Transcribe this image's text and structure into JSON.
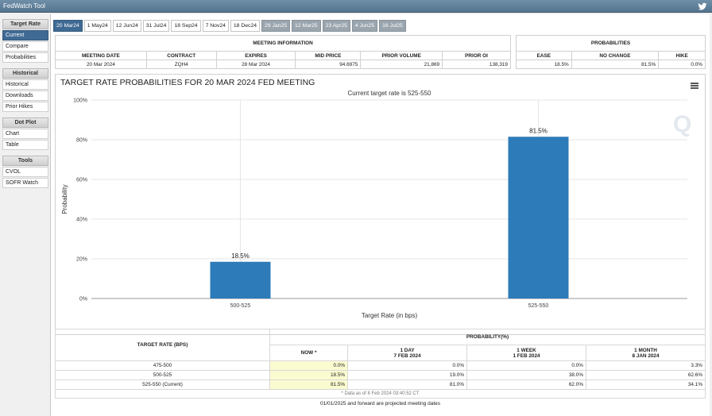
{
  "app": {
    "title": "FedWatch Tool"
  },
  "sidebar": {
    "sections": [
      {
        "heading": "Target Rate",
        "items": [
          "Current",
          "Compare",
          "Probabilities"
        ],
        "active": 0
      },
      {
        "heading": "Historical",
        "items": [
          "Historical",
          "Downloads",
          "Prior Hikes"
        ]
      },
      {
        "heading": "Dot Plot",
        "items": [
          "Chart",
          "Table"
        ]
      },
      {
        "heading": "Tools",
        "items": [
          "CVOL",
          "SOFR Watch"
        ]
      }
    ]
  },
  "tabs": [
    {
      "label": "20 Mar24",
      "state": "active"
    },
    {
      "label": "1 May24",
      "state": "normal"
    },
    {
      "label": "12 Jun24",
      "state": "normal"
    },
    {
      "label": "31 Jul24",
      "state": "normal"
    },
    {
      "label": "18 Sep24",
      "state": "normal"
    },
    {
      "label": "7 Nov24",
      "state": "normal"
    },
    {
      "label": "18 Dec24",
      "state": "normal"
    },
    {
      "label": "29 Jan25",
      "state": "projected"
    },
    {
      "label": "12 Mar25",
      "state": "projected"
    },
    {
      "label": "23 Apr25",
      "state": "projected"
    },
    {
      "label": "4 Jun25",
      "state": "projected"
    },
    {
      "label": "16 Jul25",
      "state": "projected"
    }
  ],
  "meeting_info": {
    "heading": "MEETING INFORMATION",
    "columns": [
      "MEETING DATE",
      "CONTRACT",
      "EXPIRES",
      "MID PRICE",
      "PRIOR VOLUME",
      "PRIOR OI"
    ],
    "values": [
      "20 Mar 2024",
      "ZQH4",
      "28 Mar 2024",
      "94.6975",
      "21,869",
      "138,319"
    ]
  },
  "probabilities": {
    "heading": "PROBABILITIES",
    "columns": [
      "EASE",
      "NO CHANGE",
      "HIKE"
    ],
    "values": [
      "18.5%",
      "81.5%",
      "0.0%"
    ]
  },
  "chart": {
    "title": "TARGET RATE PROBABILITIES FOR 20 MAR 2024 FED MEETING",
    "menu_icon": "hamburger-menu-icon",
    "bar_color": "#2d7bb8"
  },
  "chart_data": {
    "type": "bar",
    "title": "TARGET RATE PROBABILITIES FOR 20 MAR 2024 FED MEETING",
    "subtitle": "Current target rate is 525-550",
    "categories": [
      "500-525",
      "525-550"
    ],
    "values": [
      18.5,
      81.5
    ],
    "value_labels": [
      "18.5%",
      "81.5%"
    ],
    "xlabel": "Target Rate (in bps)",
    "ylabel": "Probability",
    "ylim": [
      0,
      100
    ],
    "yticks": [
      "0%",
      "20%",
      "40%",
      "60%",
      "80%",
      "100%"
    ],
    "grid": true,
    "legend": "none"
  },
  "prob_table": {
    "rate_header": "TARGET RATE (BPS)",
    "prob_header": "PROBABILITY(%)",
    "period_headers": [
      {
        "line1": "NOW *",
        "line2": ""
      },
      {
        "line1": "1 DAY",
        "line2": "7 FEB 2024"
      },
      {
        "line1": "1 WEEK",
        "line2": "1 FEB 2024"
      },
      {
        "line1": "1 MONTH",
        "line2": "8 JAN 2024"
      }
    ],
    "rows": [
      {
        "rate": "475-500",
        "values": [
          "0.0%",
          "0.0%",
          "0.0%",
          "3.3%"
        ]
      },
      {
        "rate": "500-525",
        "values": [
          "18.5%",
          "19.0%",
          "38.0%",
          "62.6%"
        ]
      },
      {
        "rate": "525-550 (Current)",
        "values": [
          "81.5%",
          "81.0%",
          "62.0%",
          "34.1%"
        ]
      }
    ],
    "note": "* Data as of 8 Feb 2024 03:40:52 CT"
  },
  "footnote": "01/01/2025 and forward are projected meeting dates"
}
